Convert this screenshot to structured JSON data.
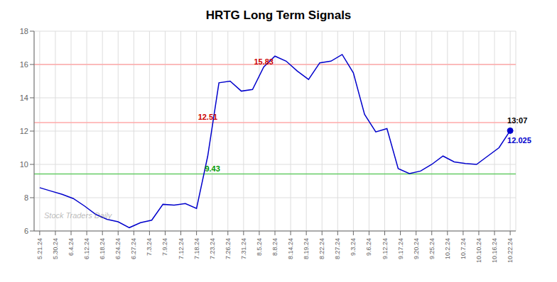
{
  "chart_data": {
    "type": "line",
    "title": "HRTG Long Term Signals",
    "x": [
      0,
      1,
      2,
      3,
      4,
      5,
      6,
      7,
      8,
      9,
      10,
      11,
      12,
      13,
      14,
      15,
      16,
      17,
      18,
      19,
      20,
      21,
      22,
      23,
      24,
      25,
      26,
      27,
      28,
      29,
      30,
      31,
      32,
      33,
      34,
      35,
      36,
      37,
      38,
      39,
      40,
      41,
      42
    ],
    "values": [
      8.6,
      8.4,
      8.2,
      7.95,
      7.5,
      7.0,
      6.7,
      6.55,
      6.2,
      6.5,
      6.65,
      7.6,
      7.55,
      7.65,
      7.35,
      10.5,
      14.9,
      15.0,
      14.4,
      14.5,
      15.85,
      16.5,
      16.2,
      15.6,
      15.1,
      16.1,
      16.2,
      16.6,
      15.5,
      13.0,
      11.95,
      12.15,
      9.75,
      9.45,
      9.6,
      10.0,
      10.5,
      10.15,
      10.05,
      10.0,
      10.5,
      11.0,
      12.025
    ],
    "color": "#0000cc",
    "xlim": [
      -0.5,
      42.5
    ],
    "xticks": [
      {
        "value": 0,
        "label": "5.21.24"
      },
      {
        "value": 1.4,
        "label": "5.30.24"
      },
      {
        "value": 2.8,
        "label": "6.4.24"
      },
      {
        "value": 4.2,
        "label": "6.12.24"
      },
      {
        "value": 5.6,
        "label": "6.18.24"
      },
      {
        "value": 7,
        "label": "6.24.24"
      },
      {
        "value": 8.4,
        "label": "6.27.24"
      },
      {
        "value": 9.8,
        "label": "7.3.24"
      },
      {
        "value": 11.2,
        "label": "7.9.24"
      },
      {
        "value": 12.6,
        "label": "7.12.24"
      },
      {
        "value": 14,
        "label": "7.18.24"
      },
      {
        "value": 15.4,
        "label": "7.23.24"
      },
      {
        "value": 16.8,
        "label": "7.26.24"
      },
      {
        "value": 18.2,
        "label": "7.31.24"
      },
      {
        "value": 19.6,
        "label": "8.5.24"
      },
      {
        "value": 21,
        "label": "8.8.24"
      },
      {
        "value": 22.4,
        "label": "8.14.24"
      },
      {
        "value": 23.8,
        "label": "8.19.24"
      },
      {
        "value": 25.2,
        "label": "8.22.24"
      },
      {
        "value": 26.6,
        "label": "8.27.24"
      },
      {
        "value": 28,
        "label": "9.3.24"
      },
      {
        "value": 29.4,
        "label": "9.6.24"
      },
      {
        "value": 30.8,
        "label": "9.12.24"
      },
      {
        "value": 32.2,
        "label": "9.17.24"
      },
      {
        "value": 33.6,
        "label": "9.20.24"
      },
      {
        "value": 35,
        "label": "9.25.24"
      },
      {
        "value": 36.4,
        "label": "10.2.24"
      },
      {
        "value": 37.8,
        "label": "10.7.24"
      },
      {
        "value": 39.2,
        "label": "10.10.24"
      },
      {
        "value": 40.6,
        "label": "10.16.24"
      },
      {
        "value": 42,
        "label": "10.22.24"
      }
    ],
    "ylim": [
      6,
      18
    ],
    "yticks": [
      6,
      8,
      10,
      12,
      14,
      16,
      18
    ],
    "grid": true,
    "hlines": [
      {
        "value": 16.0,
        "color": "#ffaaaa"
      },
      {
        "value": 12.51,
        "color": "#ffaaaa"
      },
      {
        "value": 9.43,
        "color": "#66cc66"
      }
    ],
    "markers": [
      {
        "x": 42,
        "y": 12.025,
        "marker": "o",
        "color": "#0000cc"
      }
    ],
    "annotations": [
      {
        "text": "15.83",
        "x": 20,
        "y": 15.83,
        "color": "#cc0000",
        "position": "above"
      },
      {
        "text": "12.51",
        "x": 15,
        "y": 12.51,
        "color": "#cc0000",
        "position": "above"
      },
      {
        "text": "9.43",
        "x": 15,
        "y": 9.43,
        "color": "#009900",
        "position": "above_right"
      },
      {
        "text": "13:07",
        "x": 42,
        "y": 12.025,
        "color": "#000000",
        "position": "above_right"
      },
      {
        "text": "12.025",
        "x": 42,
        "y": 12.025,
        "color": "#0000cc",
        "position": "below_right"
      }
    ],
    "watermark": "Stock Traders Daily"
  }
}
